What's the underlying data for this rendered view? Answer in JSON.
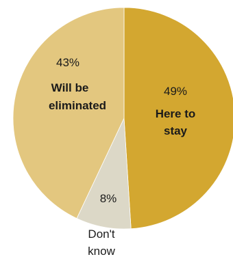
{
  "chart_data": {
    "type": "pie",
    "slices": [
      {
        "label_lines": [
          "Here to",
          "stay"
        ],
        "value": 49,
        "pct_label": "49%",
        "color": "#d3a730"
      },
      {
        "label_lines": [
          "Don't",
          "know"
        ],
        "value": 8,
        "pct_label": "8%",
        "color": "#dcd8c7"
      },
      {
        "label_lines": [
          "Will be",
          "eliminated"
        ],
        "value": 43,
        "pct_label": "43%",
        "color": "#e3c77f"
      }
    ]
  }
}
